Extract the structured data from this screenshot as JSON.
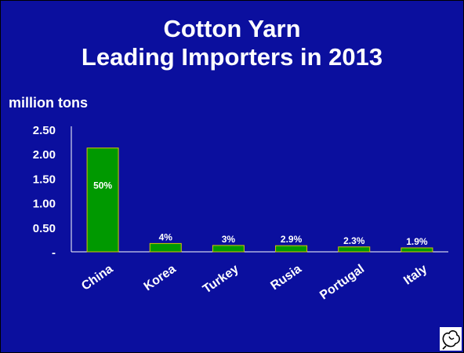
{
  "title_line1": "Cotton Yarn",
  "title_line2": "Leading Importers in 2013",
  "units_label": "million tons",
  "colors": {
    "background": "#0b0f9e",
    "bar_fill": "#009900",
    "bar_stroke": "#d4c400",
    "text": "#ffffff"
  },
  "logo_icon": "cotton-boll-icon",
  "chart_data": {
    "type": "bar",
    "title": "Cotton Yarn Leading Importers in 2013",
    "ylabel": "million tons",
    "xlabel": "",
    "categories": [
      "China",
      "Korea",
      "Turkey",
      "Rusia",
      "Portugal",
      "Italy"
    ],
    "values": [
      2.12,
      0.17,
      0.13,
      0.125,
      0.1,
      0.08
    ],
    "data_labels": [
      "50%",
      "4%",
      "3%",
      "2.9%",
      "2.3%",
      "1.9%"
    ],
    "ylim": [
      0,
      2.5
    ],
    "yticks": [
      0,
      0.5,
      1.0,
      1.5,
      2.0,
      2.5
    ],
    "ytick_labels": [
      "-",
      "0.50",
      "1.00",
      "1.50",
      "2.00",
      "2.50"
    ],
    "grid": false,
    "legend": "none"
  }
}
